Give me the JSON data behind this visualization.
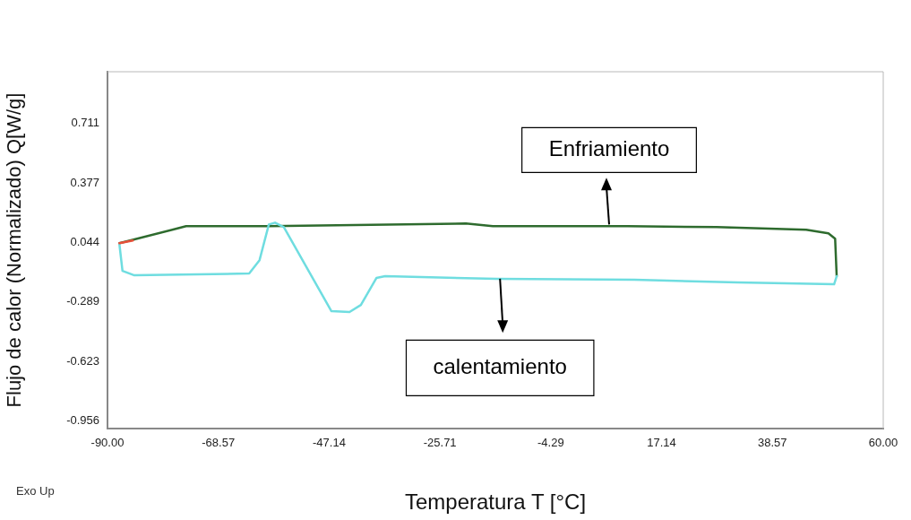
{
  "chart_data": {
    "type": "line",
    "xlabel": "Temperatura T [°C]",
    "ylabel": "Flujo de calor (Normalizado) Q[W/g]",
    "xlim": [
      -90,
      60
    ],
    "ylim": [
      -1.0,
      1.0
    ],
    "xticks": [
      {
        "value": -90,
        "label": "-90.00"
      },
      {
        "value": -68.57,
        "label": "-68.57"
      },
      {
        "value": -47.14,
        "label": "-47.14"
      },
      {
        "value": -25.71,
        "label": "-25.71"
      },
      {
        "value": -4.29,
        "label": "-4.29"
      },
      {
        "value": 17.14,
        "label": "17.14"
      },
      {
        "value": 38.57,
        "label": "38.57"
      },
      {
        "value": 60,
        "label": "60.00"
      }
    ],
    "yticks": [
      -0.956,
      -0.623,
      -0.289,
      0.044,
      0.377,
      0.711
    ],
    "grid": false,
    "legend": false,
    "marker": "none",
    "line_style": "solid",
    "series": [
      {
        "color": "#2e6b2e",
        "x": [
          -87.7,
          -74.8,
          -58.8,
          -20.7,
          -15.5,
          10.5,
          27.8,
          45.1,
          49.4,
          50.7,
          51.0
        ],
        "values": [
          0.039,
          0.134,
          0.134,
          0.149,
          0.134,
          0.134,
          0.129,
          0.114,
          0.094,
          0.064,
          -0.146
        ]
      },
      {
        "color": "#6fdde0",
        "x": [
          -87.7,
          -87.1,
          -84.8,
          -62.6,
          -60.6,
          -58.8,
          -57.6,
          -55.9,
          -46.7,
          -43.2,
          -41.0,
          -38.0,
          -36.3,
          -14.8,
          11.9,
          31.8,
          50.5,
          51.0
        ],
        "values": [
          0.034,
          -0.116,
          -0.141,
          -0.131,
          -0.056,
          0.144,
          0.154,
          0.129,
          -0.342,
          -0.347,
          -0.307,
          -0.156,
          -0.146,
          -0.161,
          -0.166,
          -0.181,
          -0.191,
          -0.146
        ]
      },
      {
        "color": "#e8503a",
        "x": [
          -87.7,
          -85.1
        ],
        "values": [
          0.039,
          0.054
        ]
      }
    ],
    "annotations": [
      {
        "text": "Enfriamiento",
        "x": 7.0,
        "y": 0.134
      },
      "calentamiento",
      "Exo Up"
    ]
  }
}
